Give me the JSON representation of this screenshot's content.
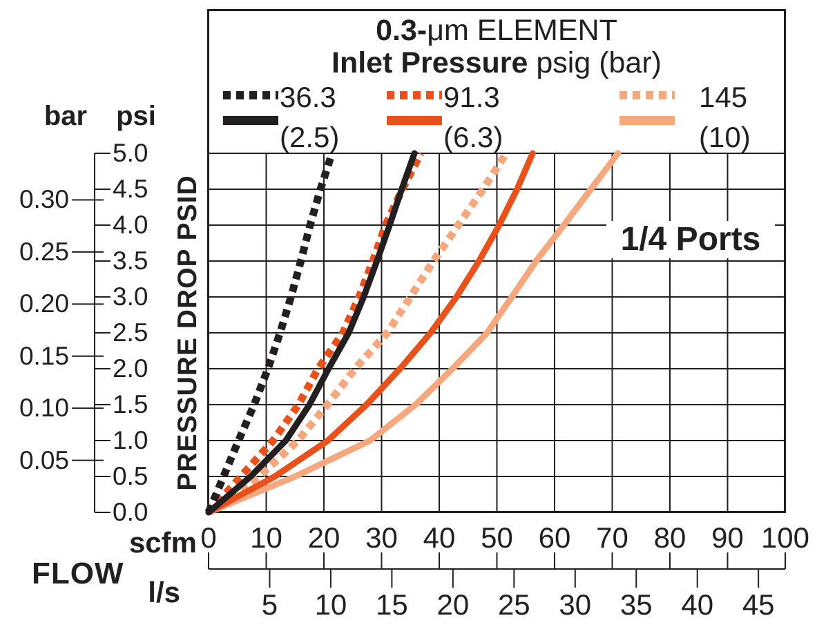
{
  "accent_colors": {
    "black": "#231F20",
    "orange": "#E8511C",
    "salmon": "#F5A77E",
    "grid": "#231F20"
  },
  "legend": {
    "title_bold": "0.3-",
    "title_rest": "μm ELEMENT",
    "subtitle_bold": "Inlet Pressure",
    "subtitle_rest": " psig (bar)",
    "items": [
      {
        "label": "36.3",
        "style": "dotted",
        "color": "#231F20"
      },
      {
        "label": "91.3",
        "style": "dotted",
        "color": "#E8511C"
      },
      {
        "label": "145",
        "style": "dotted",
        "color": "#F5A77E"
      },
      {
        "label": "(2.5)",
        "style": "solid",
        "color": "#231F20"
      },
      {
        "label": "(6.3)",
        "style": "solid",
        "color": "#E8511C"
      },
      {
        "label": "(10)",
        "style": "solid",
        "color": "#F5A77E"
      }
    ]
  },
  "annotation": "1/4 Ports",
  "y_axis": {
    "title": "PRESSURE DROP PSID",
    "psi_header": "psi",
    "bar_header": "bar",
    "psi_ticks": [
      "5.0",
      "4.5",
      "4.0",
      "3.5",
      "3.0",
      "2.5",
      "2.0",
      "1.5",
      "1.0",
      "0.5",
      "0.0"
    ],
    "bar_ticks": [
      "0.30",
      "0.25",
      "0.20",
      "0.15",
      "0.10",
      "0.05"
    ]
  },
  "x_axis": {
    "title": "FLOW",
    "scfm_unit": "scfm",
    "ls_unit": "l/s",
    "scfm_ticks": [
      "0",
      "10",
      "20",
      "30",
      "40",
      "50",
      "60",
      "70",
      "80",
      "90",
      "100"
    ],
    "ls_ticks": [
      "5",
      "10",
      "15",
      "20",
      "25",
      "30",
      "35",
      "40",
      "45"
    ]
  },
  "chart_data": {
    "type": "line",
    "title": "0.3-μm ELEMENT",
    "subtitle": "Inlet Pressure psig (bar)",
    "annotation": "1/4 Ports",
    "xlabel": "FLOW (scfm, l/s)",
    "ylabel": "PRESSURE DROP PSID (psi, bar)",
    "xlim_scfm": [
      0,
      100
    ],
    "ylim_psi": [
      0,
      5
    ],
    "grid": true,
    "legend_position": "top",
    "psi_points": [
      0,
      0.5,
      1.0,
      1.5,
      2.0,
      2.5,
      3.0,
      3.5,
      4.0,
      4.5,
      5.0
    ],
    "series": [
      {
        "name": "145 psig (10 bar) solid",
        "inlet_pressure": "(10)",
        "style": "solid",
        "color": "#F5A77E",
        "scfm": [
          0,
          15.0,
          28.0,
          35.9,
          42.3,
          48.3,
          52.6,
          56.8,
          61.6,
          66.3,
          71.0
        ]
      },
      {
        "name": "145 psig (10 bar) dotted",
        "inlet_pressure": "145",
        "style": "dotted",
        "color": "#F5A77E",
        "scfm": [
          0,
          8.8,
          15.5,
          20.6,
          25.4,
          31.0,
          35.0,
          39.0,
          43.3,
          47.6,
          51.6
        ]
      },
      {
        "name": "91.3 psig (6.3 bar) solid",
        "inlet_pressure": "(6.3)",
        "style": "solid",
        "color": "#E8511C",
        "scfm": [
          0,
          11.5,
          20.7,
          27.4,
          33.2,
          38.5,
          43.0,
          46.9,
          50.4,
          53.5,
          56.2
        ]
      },
      {
        "name": "91.3 psig (6.3 bar) dotted",
        "inlet_pressure": "91.3",
        "style": "dotted",
        "color": "#E8511C",
        "scfm": [
          0,
          5.6,
          11.2,
          15.6,
          19.0,
          23.3,
          26.1,
          28.5,
          30.7,
          33.6,
          36.8
        ]
      },
      {
        "name": "36.3 psig (2.5 bar) solid",
        "inlet_pressure": "(2.5)",
        "style": "solid",
        "color": "#231F20",
        "scfm": [
          0,
          7.3,
          13.4,
          17.5,
          20.8,
          24.3,
          26.9,
          29.2,
          31.4,
          33.5,
          35.7
        ]
      },
      {
        "name": "36.3 psig (2.5 bar) dotted",
        "inlet_pressure": "36.3",
        "style": "dotted",
        "color": "#231F20",
        "scfm": [
          0,
          2.6,
          5.2,
          7.9,
          10.3,
          12.4,
          14.3,
          16.0,
          17.6,
          19.4,
          21.4
        ]
      }
    ]
  }
}
